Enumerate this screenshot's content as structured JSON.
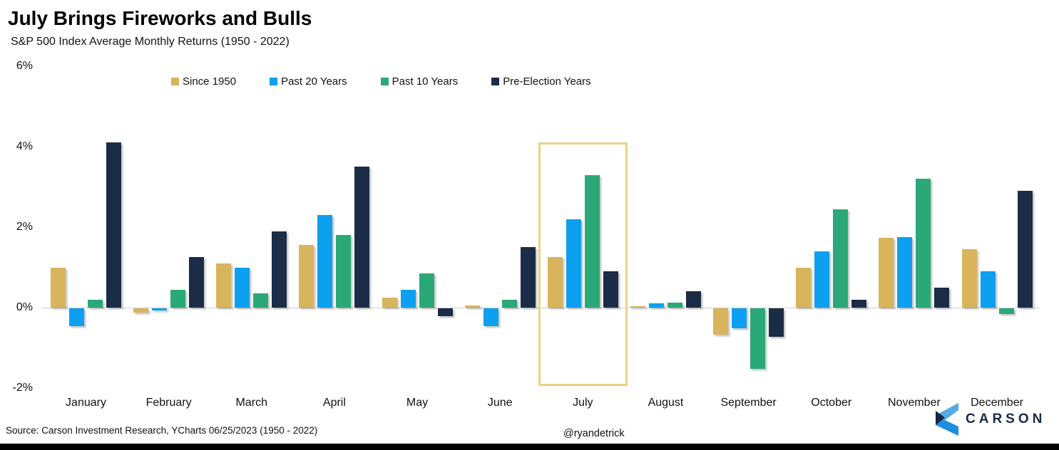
{
  "title": "July Brings Fireworks and Bulls",
  "subtitle": "S&P 500 Index Average Monthly Returns (1950 - 2022)",
  "source_note": "Source: Carson Investment Research, YCharts 06/25/2023 (1950 - 2022)",
  "handle": "@ryandetrick",
  "brand": {
    "wordmark": "CARSON"
  },
  "colors": {
    "since_1950": "#d8b45c",
    "past_20_years": "#0d9ff0",
    "past_10_years": "#2ba877",
    "pre_election": "#1b2c46",
    "highlight_box": "#e9d383",
    "axis_line": "#cfcfcf",
    "bottom_bar": "#000000",
    "logo_light_blue": "#55abe4",
    "logo_blue": "#1e8fe0",
    "logo_navy": "#152741"
  },
  "chart_data": {
    "type": "bar",
    "title": "July Brings Fireworks and Bulls",
    "subtitle": "S&P 500 Index Average Monthly Returns (1950 - 2022)",
    "categories": [
      "January",
      "February",
      "March",
      "April",
      "May",
      "June",
      "July",
      "August",
      "September",
      "October",
      "November",
      "December"
    ],
    "series": [
      {
        "name": "Since 1950",
        "color": "#d8b45c",
        "values": [
          1.0,
          -0.1,
          1.1,
          1.55,
          0.25,
          0.05,
          1.25,
          0.03,
          -0.65,
          1.0,
          1.74,
          1.45
        ]
      },
      {
        "name": "Past 20 Years",
        "color": "#0d9ff0",
        "values": [
          -0.45,
          -0.05,
          1.0,
          2.3,
          0.45,
          -0.45,
          2.2,
          0.1,
          -0.5,
          1.4,
          1.76,
          0.9
        ]
      },
      {
        "name": "Past 10 Years",
        "color": "#2ba877",
        "values": [
          0.2,
          0.45,
          0.35,
          1.8,
          0.85,
          0.2,
          3.3,
          0.12,
          -1.5,
          2.45,
          3.2,
          -0.15
        ]
      },
      {
        "name": "Pre-Election Years",
        "color": "#1b2c46",
        "values": [
          4.1,
          1.25,
          1.9,
          3.5,
          -0.2,
          1.5,
          0.9,
          0.4,
          -0.7,
          0.2,
          0.5,
          2.9
        ]
      }
    ],
    "ylabel": "",
    "xlabel": "",
    "ylim": [
      -2,
      6
    ],
    "yticks": [
      6,
      4,
      2,
      0,
      -2
    ],
    "ytick_labels": [
      "6%",
      "4%",
      "2%",
      "0%",
      "-2%"
    ],
    "grid": false,
    "legend_position": "top",
    "highlighted_category": "July"
  }
}
